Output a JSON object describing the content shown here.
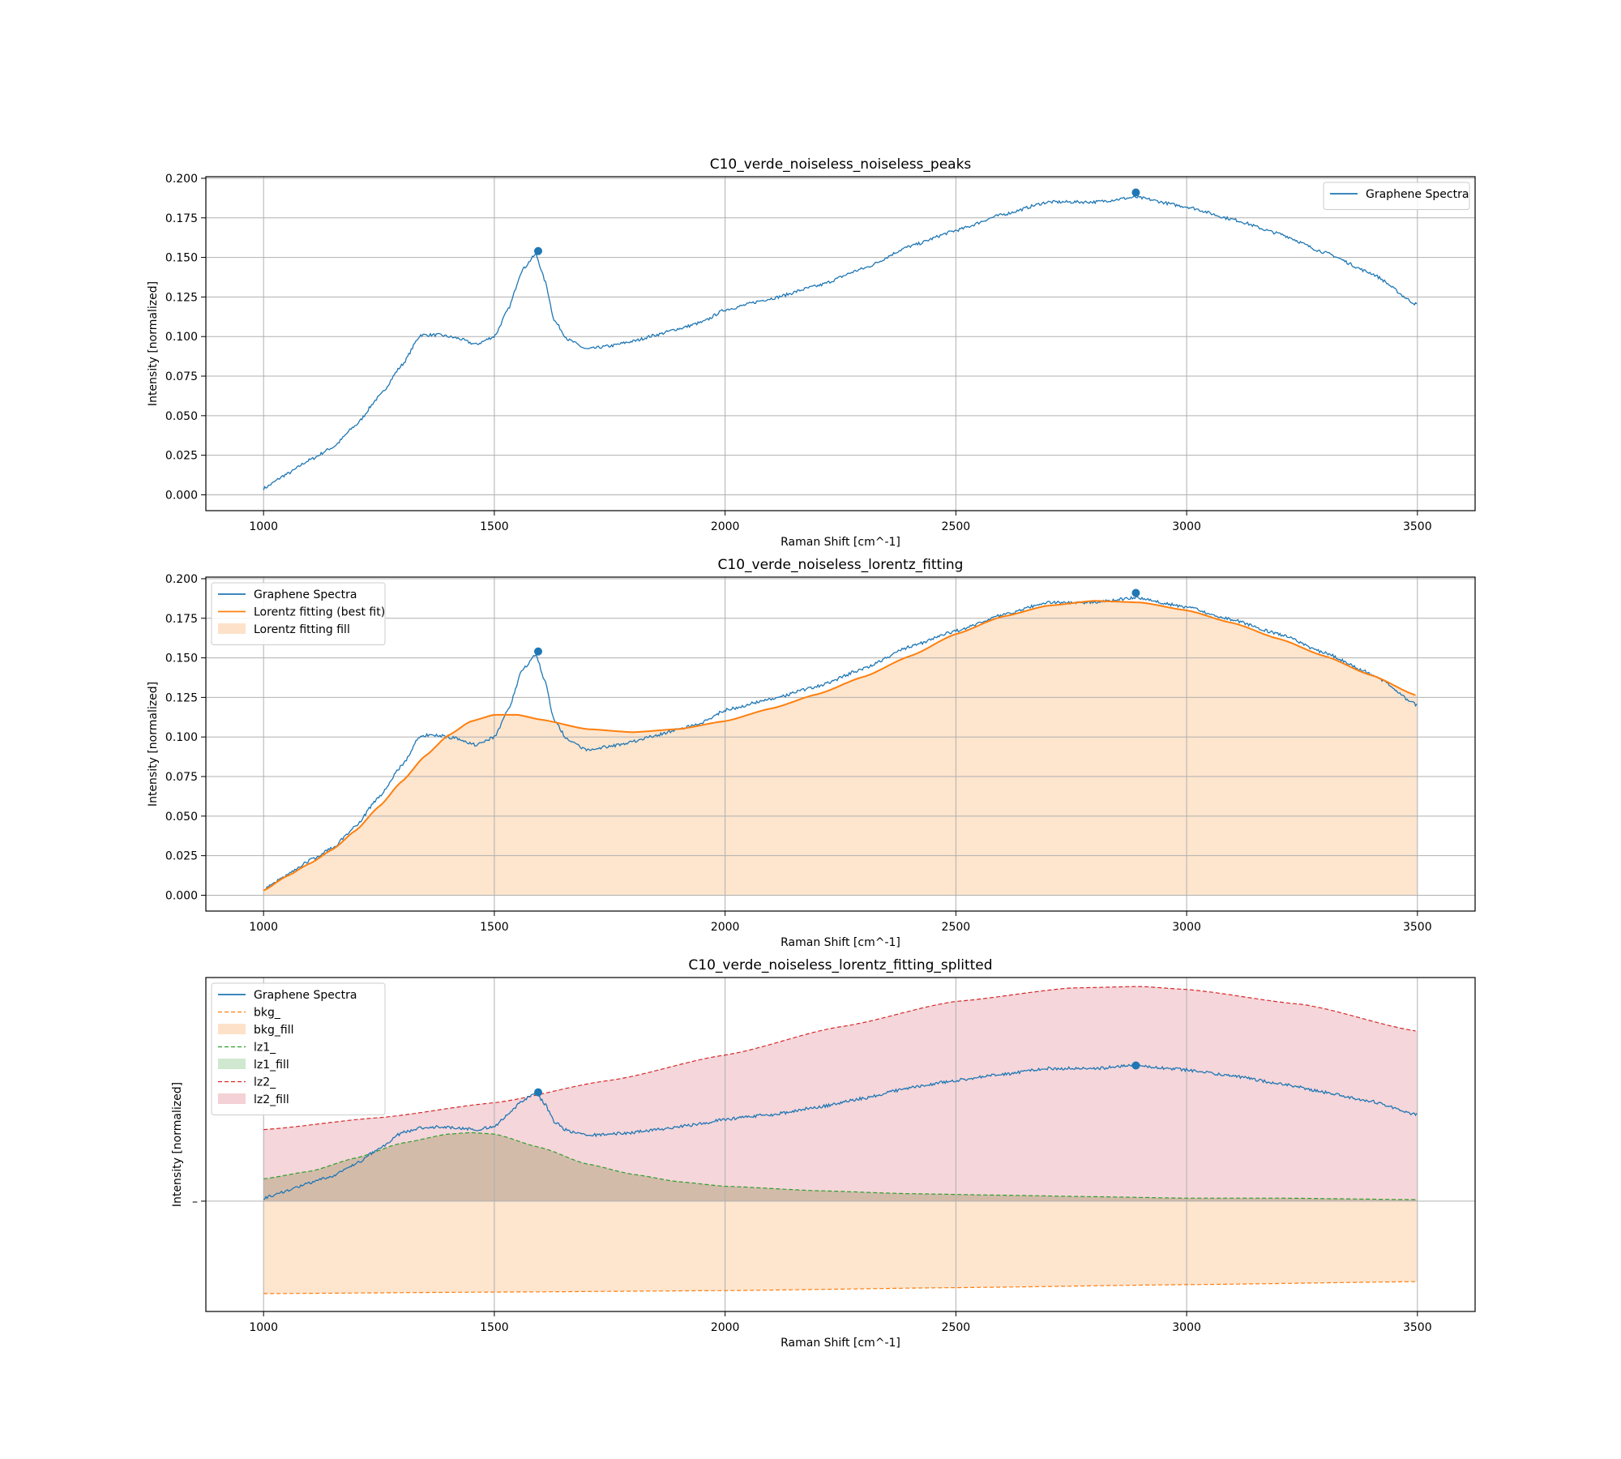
{
  "figure": {
    "background": "#ffffff"
  },
  "colors": {
    "spectra": "#1f77b4",
    "fit": "#ff7f0e",
    "fit_fill": "#fde2c9",
    "bkg": "#ff7f0e",
    "bkg_fill": "#fde2c9",
    "lz1": "#2ca02c",
    "lz1_fill": "#cfe8cf",
    "lz2": "#d62728",
    "lz2_fill": "#f4d1d6",
    "grid": "#b0b0b0"
  },
  "chart_data": [
    {
      "type": "line",
      "title": "C10_verde_noiseless_noiseless_peaks",
      "xlabel": "Raman Shift [cm^-1]",
      "ylabel": "Intensity [normalized]",
      "xlim": [
        875,
        3625
      ],
      "ylim": [
        -0.01,
        0.201
      ],
      "xticks": [
        1000,
        1500,
        2000,
        2500,
        3000,
        3500
      ],
      "yticks": [
        "0.000",
        "0.025",
        "0.050",
        "0.075",
        "0.100",
        "0.125",
        "0.150",
        "0.175",
        "0.200"
      ],
      "ytick_values": [
        0.0,
        0.025,
        0.05,
        0.075,
        0.1,
        0.125,
        0.15,
        0.175,
        0.2
      ],
      "grid": true,
      "legend_position": "upper-right",
      "legend": [
        {
          "label": "Graphene Spectra",
          "kind": "line",
          "color": "#1f77b4"
        }
      ],
      "series": [
        {
          "name": "Graphene Spectra",
          "kind": "noisy-line",
          "color": "#1f77b4",
          "x": [
            1000,
            1050,
            1100,
            1150,
            1200,
            1250,
            1300,
            1340,
            1380,
            1420,
            1460,
            1500,
            1530,
            1560,
            1590,
            1610,
            1630,
            1660,
            1700,
            1750,
            1800,
            1850,
            1900,
            1950,
            2000,
            2100,
            2200,
            2300,
            2400,
            2500,
            2600,
            2700,
            2800,
            2890,
            3000,
            3100,
            3200,
            3300,
            3400,
            3500
          ],
          "y": [
            0.004,
            0.013,
            0.022,
            0.03,
            0.044,
            0.062,
            0.082,
            0.101,
            0.101,
            0.099,
            0.095,
            0.1,
            0.117,
            0.142,
            0.152,
            0.135,
            0.11,
            0.098,
            0.092,
            0.094,
            0.097,
            0.101,
            0.105,
            0.109,
            0.117,
            0.124,
            0.132,
            0.143,
            0.157,
            0.167,
            0.177,
            0.185,
            0.185,
            0.188,
            0.182,
            0.174,
            0.165,
            0.153,
            0.14,
            0.12
          ]
        }
      ],
      "peaks": [
        {
          "x": 1595,
          "y": 0.154
        },
        {
          "x": 2890,
          "y": 0.191
        }
      ]
    },
    {
      "type": "line",
      "title": "C10_verde_noiseless_lorentz_fitting",
      "xlabel": "Raman Shift [cm^-1]",
      "ylabel": "Intensity [normalized]",
      "xlim": [
        875,
        3625
      ],
      "ylim": [
        -0.01,
        0.201
      ],
      "xticks": [
        1000,
        1500,
        2000,
        2500,
        3000,
        3500
      ],
      "yticks": [
        "0.000",
        "0.025",
        "0.050",
        "0.075",
        "0.100",
        "0.125",
        "0.150",
        "0.175",
        "0.200"
      ],
      "ytick_values": [
        0.0,
        0.025,
        0.05,
        0.075,
        0.1,
        0.125,
        0.15,
        0.175,
        0.2
      ],
      "grid": true,
      "legend_position": "upper-left",
      "legend": [
        {
          "label": "Graphene Spectra",
          "kind": "line",
          "color": "#1f77b4"
        },
        {
          "label": "Lorentz fitting (best fit)",
          "kind": "line",
          "color": "#ff7f0e"
        },
        {
          "label": "Lorentz fitting fill",
          "kind": "patch",
          "color": "#fde2c9"
        }
      ],
      "series": [
        {
          "name": "Graphene Spectra",
          "kind": "noisy-line",
          "color": "#1f77b4",
          "x": [
            1000,
            1050,
            1100,
            1150,
            1200,
            1250,
            1300,
            1340,
            1380,
            1420,
            1460,
            1500,
            1530,
            1560,
            1590,
            1610,
            1630,
            1660,
            1700,
            1750,
            1800,
            1850,
            1900,
            1950,
            2000,
            2100,
            2200,
            2300,
            2400,
            2500,
            2600,
            2700,
            2800,
            2890,
            3000,
            3100,
            3200,
            3300,
            3400,
            3500
          ],
          "y": [
            0.004,
            0.013,
            0.022,
            0.03,
            0.044,
            0.062,
            0.082,
            0.101,
            0.101,
            0.099,
            0.095,
            0.1,
            0.117,
            0.142,
            0.152,
            0.135,
            0.11,
            0.098,
            0.092,
            0.094,
            0.097,
            0.101,
            0.105,
            0.109,
            0.117,
            0.124,
            0.132,
            0.143,
            0.157,
            0.167,
            0.177,
            0.185,
            0.185,
            0.188,
            0.182,
            0.174,
            0.165,
            0.153,
            0.14,
            0.12
          ]
        },
        {
          "name": "Lorentz fitting (best fit)",
          "kind": "filled-line",
          "color": "#ff7f0e",
          "fill": "#fde2c9",
          "x": [
            1000,
            1050,
            1100,
            1150,
            1200,
            1250,
            1300,
            1350,
            1400,
            1450,
            1500,
            1550,
            1600,
            1700,
            1800,
            1900,
            2000,
            2100,
            2200,
            2300,
            2400,
            2500,
            2600,
            2700,
            2800,
            2900,
            3000,
            3100,
            3200,
            3300,
            3400,
            3500
          ],
          "y": [
            0.003,
            0.012,
            0.02,
            0.029,
            0.041,
            0.056,
            0.072,
            0.088,
            0.101,
            0.11,
            0.114,
            0.114,
            0.111,
            0.105,
            0.103,
            0.105,
            0.11,
            0.118,
            0.127,
            0.138,
            0.151,
            0.165,
            0.176,
            0.183,
            0.186,
            0.185,
            0.18,
            0.172,
            0.162,
            0.151,
            0.139,
            0.126
          ]
        }
      ],
      "peaks": [
        {
          "x": 1595,
          "y": 0.154
        },
        {
          "x": 2890,
          "y": 0.191
        }
      ]
    },
    {
      "type": "line",
      "title": "C10_verde_noiseless_lorentz_fitting_splitted",
      "xlabel": "Raman Shift [cm^-1]",
      "ylabel": "Intensity [normalized]",
      "xlim": [
        875,
        3625
      ],
      "ylim": [
        -0.074,
        0.15
      ],
      "xticks": [
        1000,
        1500,
        2000,
        2500,
        3000,
        3500
      ],
      "yticks": [
        "–"
      ],
      "ytick_values": [
        0.0
      ],
      "grid": true,
      "legend_position": "upper-left",
      "legend": [
        {
          "label": "Graphene Spectra",
          "kind": "line",
          "color": "#1f77b4"
        },
        {
          "label": "bkg_",
          "kind": "dashed",
          "color": "#ff7f0e"
        },
        {
          "label": "bkg_fill",
          "kind": "patch",
          "color": "#fde2c9"
        },
        {
          "label": "lz1_",
          "kind": "dashed",
          "color": "#2ca02c"
        },
        {
          "label": "lz1_fill",
          "kind": "patch",
          "color": "#cfe8cf"
        },
        {
          "label": "lz2_",
          "kind": "dashed",
          "color": "#d62728"
        },
        {
          "label": "lz2_fill",
          "kind": "patch",
          "color": "#f4d1d6"
        }
      ],
      "series": [
        {
          "name": "lz2_",
          "kind": "filled-dashed",
          "color": "#d62728",
          "fill": "#f4d1d6",
          "x": [
            1000,
            1250,
            1500,
            1750,
            2000,
            2250,
            2500,
            2750,
            2900,
            3000,
            3250,
            3500
          ],
          "y": [
            0.048,
            0.056,
            0.066,
            0.081,
            0.098,
            0.117,
            0.134,
            0.143,
            0.144,
            0.142,
            0.132,
            0.114
          ]
        },
        {
          "name": "bkg_",
          "kind": "filled-dashed",
          "color": "#ff7f0e",
          "fill": "#fde2c9",
          "x": [
            1000,
            1500,
            2000,
            2500,
            3000,
            3500
          ],
          "y": [
            -0.062,
            -0.061,
            -0.06,
            -0.058,
            -0.056,
            -0.054
          ]
        },
        {
          "name": "lz1_",
          "kind": "filled-dashed",
          "color": "#2ca02c",
          "fill": "#cfb8a4",
          "x": [
            1000,
            1100,
            1200,
            1300,
            1400,
            1450,
            1500,
            1600,
            1700,
            1800,
            1900,
            2000,
            2200,
            2400,
            2600,
            2800,
            3000,
            3200,
            3500
          ],
          "y": [
            0.015,
            0.02,
            0.029,
            0.039,
            0.045,
            0.046,
            0.045,
            0.036,
            0.025,
            0.018,
            0.013,
            0.01,
            0.007,
            0.005,
            0.004,
            0.003,
            0.002,
            0.002,
            0.001
          ]
        },
        {
          "name": "Graphene Spectra",
          "kind": "noisy-line",
          "color": "#1f77b4",
          "x": [
            1000,
            1050,
            1100,
            1150,
            1200,
            1250,
            1300,
            1340,
            1380,
            1420,
            1460,
            1500,
            1530,
            1560,
            1590,
            1610,
            1630,
            1660,
            1700,
            1750,
            1800,
            1850,
            1900,
            1950,
            2000,
            2100,
            2200,
            2300,
            2400,
            2500,
            2600,
            2700,
            2800,
            2890,
            3000,
            3100,
            3200,
            3300,
            3400,
            3500
          ],
          "y": [
            0.002,
            0.007,
            0.012,
            0.017,
            0.025,
            0.035,
            0.046,
            0.049,
            0.05,
            0.049,
            0.048,
            0.05,
            0.058,
            0.067,
            0.073,
            0.065,
            0.053,
            0.047,
            0.044,
            0.045,
            0.046,
            0.048,
            0.05,
            0.052,
            0.055,
            0.058,
            0.063,
            0.069,
            0.076,
            0.081,
            0.085,
            0.089,
            0.089,
            0.091,
            0.088,
            0.084,
            0.079,
            0.073,
            0.067,
            0.058
          ]
        }
      ],
      "peaks": [
        {
          "x": 1595,
          "y": 0.073
        },
        {
          "x": 2890,
          "y": 0.091
        }
      ]
    }
  ]
}
